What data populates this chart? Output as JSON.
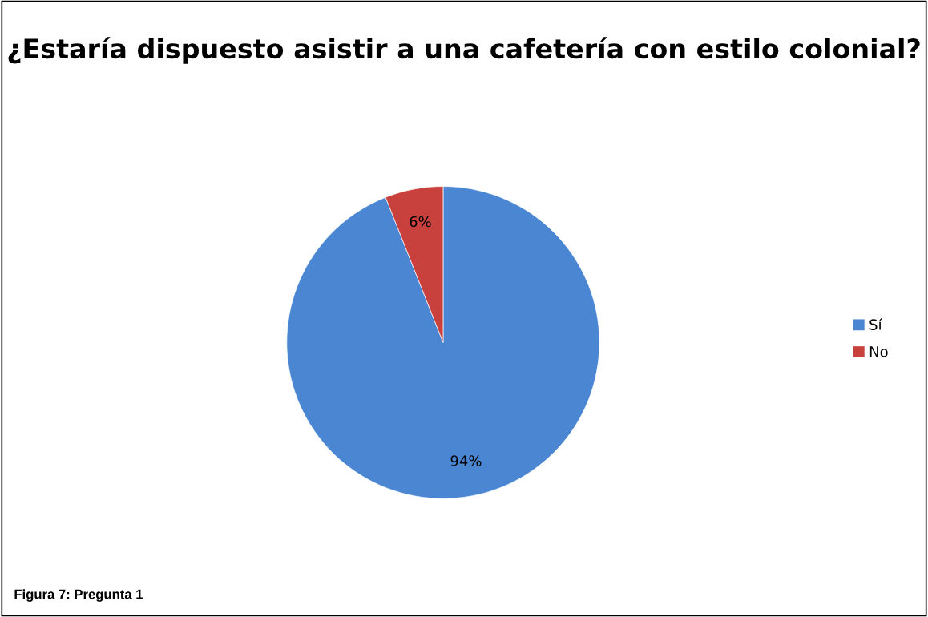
{
  "chart_data": {
    "type": "pie",
    "title": "¿Estaría dispuesto asistir a una cafetería con estilo colonial?",
    "categories": [
      "Sí",
      "No"
    ],
    "values": [
      94,
      6
    ],
    "colors": [
      "#4a86d2",
      "#c8413c"
    ],
    "value_labels": [
      "94%",
      "6%"
    ],
    "legend": "right",
    "annotations": [
      "Figura 7: Pregunta 1"
    ]
  }
}
